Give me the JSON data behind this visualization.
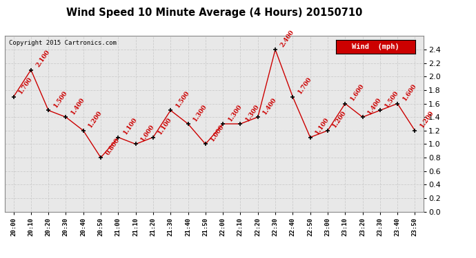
{
  "title": "Wind Speed 10 Minute Average (4 Hours) 20150710",
  "copyright": "Copyright 2015 Cartronics.com",
  "legend_label": "Wind  (mph)",
  "times": [
    "20:00",
    "20:10",
    "20:20",
    "20:30",
    "20:40",
    "20:50",
    "21:00",
    "21:10",
    "21:20",
    "21:30",
    "21:40",
    "21:50",
    "22:00",
    "22:10",
    "22:20",
    "22:30",
    "22:40",
    "22:50",
    "23:00",
    "23:10",
    "23:20",
    "23:30",
    "23:40",
    "23:50"
  ],
  "values": [
    1.7,
    2.1,
    1.5,
    1.4,
    1.2,
    0.8,
    1.1,
    1.0,
    1.1,
    1.5,
    1.3,
    1.0,
    1.3,
    1.3,
    1.4,
    2.4,
    1.7,
    1.1,
    1.2,
    1.6,
    1.4,
    1.5,
    1.6,
    1.2
  ],
  "ylim": [
    0.0,
    2.6
  ],
  "yticks": [
    0.0,
    0.2,
    0.4,
    0.6,
    0.8,
    1.0,
    1.2,
    1.4,
    1.6,
    1.8,
    2.0,
    2.2,
    2.4
  ],
  "line_color": "#cc0000",
  "marker_color": "#000000",
  "bg_color": "#ffffff",
  "plot_bg_color": "#e8e8e8",
  "grid_color": "#cccccc",
  "title_fontsize": 11,
  "annotation_color": "#cc0000",
  "legend_bg": "#cc0000",
  "legend_text_color": "#ffffff"
}
